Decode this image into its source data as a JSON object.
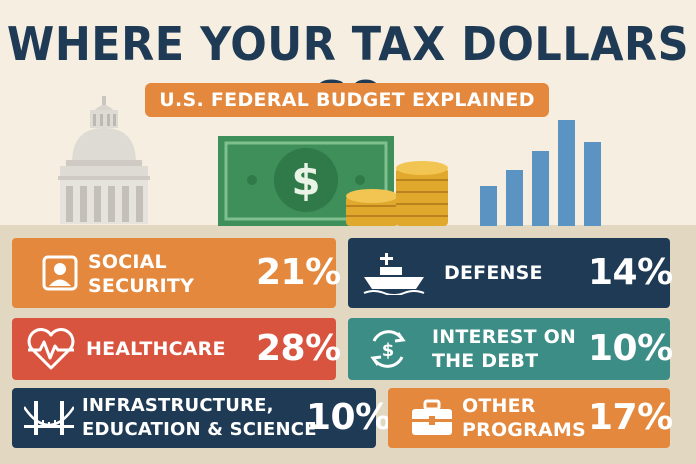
{
  "title": "WHERE YOUR TAX DOLLARS GO",
  "subtitle": "U.S. FEDERAL BUDGET EXPLAINED",
  "currency_symbol": "$",
  "colors": {
    "navy": "#1f3a55",
    "orange": "#e3883d",
    "red": "#d9543f",
    "teal": "#3b8d85",
    "background": "#f6efe1"
  },
  "categories": [
    {
      "id": "social-security",
      "label_lines": [
        "SOCIAL",
        "SECURITY"
      ],
      "percent": "21%",
      "icon": "person-id-icon",
      "color": "#e3883d"
    },
    {
      "id": "defense",
      "label_lines": [
        "DEFENSE"
      ],
      "percent": "14%",
      "icon": "warship-icon",
      "color": "#1f3a55"
    },
    {
      "id": "healthcare",
      "label_lines": [
        "HEALTHCARE"
      ],
      "percent": "28%",
      "icon": "heart-pulse-icon",
      "color": "#d9543f"
    },
    {
      "id": "interest-on-debt",
      "label_lines": [
        "INTEREST ON",
        "THE DEBT"
      ],
      "percent": "10%",
      "icon": "dollar-cycle-icon",
      "color": "#3b8d85"
    },
    {
      "id": "infrastructure",
      "label_lines": [
        "INFRASTRUCTURE,",
        "EDUCATION & SCIENCE"
      ],
      "percent": "10%",
      "icon": "bridge-icon",
      "color": "#1f3a55"
    },
    {
      "id": "other-programs",
      "label_lines": [
        "OTHER",
        "PROGRAMS"
      ],
      "percent": "17%",
      "icon": "briefcase-icon",
      "color": "#e3883d"
    }
  ]
}
